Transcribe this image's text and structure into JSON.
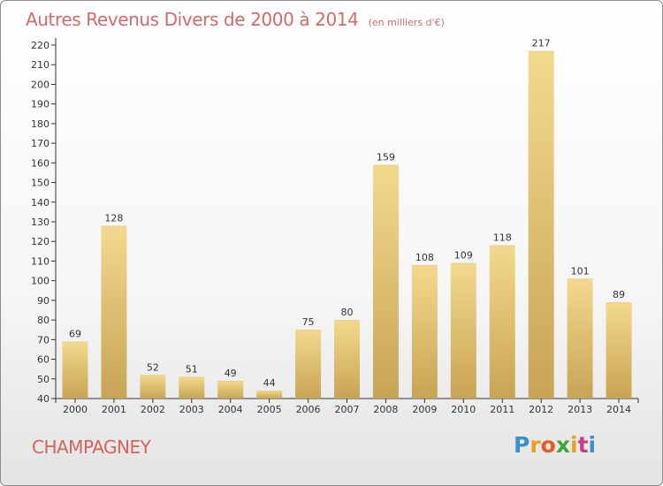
{
  "header": {
    "title": "Autres Revenus Divers de 2000 à 2014",
    "unit": "(en milliers d'€)"
  },
  "footer": {
    "commune": "CHAMPAGNEY"
  },
  "logo": {
    "letters": [
      "P",
      "r",
      "o",
      "x",
      "i",
      "t",
      "i"
    ],
    "colors": [
      "#3a8fd0",
      "#e8a020",
      "#e85a20",
      "#3aaa35",
      "#e8a020",
      "#c83c8c",
      "#3a8fd0"
    ]
  },
  "colors": {
    "bar_light": "#f3d98e",
    "bar_dark": "#c8a455",
    "title": "#d36a6a"
  },
  "chart_data": {
    "type": "bar",
    "categories": [
      "2000",
      "2001",
      "2002",
      "2003",
      "2004",
      "2005",
      "2006",
      "2007",
      "2008",
      "2009",
      "2010",
      "2011",
      "2012",
      "2013",
      "2014"
    ],
    "values": [
      69,
      128,
      52,
      51,
      49,
      44,
      75,
      80,
      159,
      108,
      109,
      118,
      217,
      101,
      89
    ],
    "ylim": [
      40,
      220
    ],
    "yticks": [
      40,
      50,
      60,
      70,
      80,
      90,
      100,
      110,
      120,
      130,
      140,
      150,
      160,
      170,
      180,
      190,
      200,
      210,
      220
    ],
    "grid": false,
    "xlabel": "",
    "ylabel": ""
  }
}
